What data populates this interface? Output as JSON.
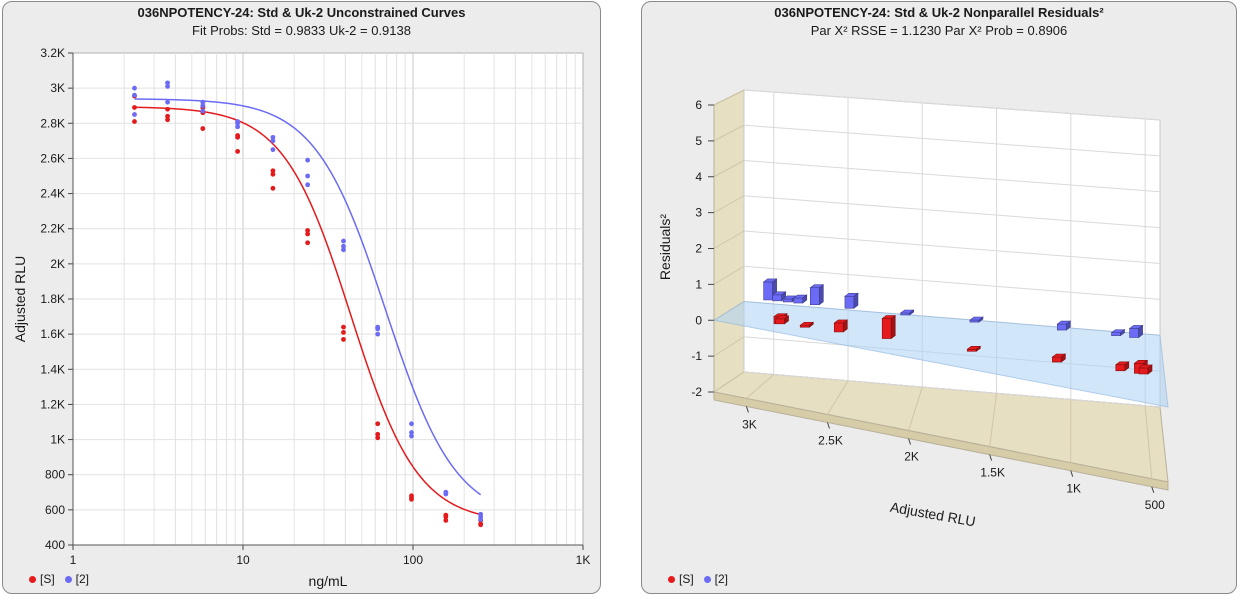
{
  "colors": {
    "std": "#e41a1c",
    "uk": "#6b6bf5",
    "panel_bg": "#ececec"
  },
  "legend": {
    "std_label": "[S]",
    "uk_label": "[2]"
  },
  "chart_data": [
    {
      "type": "scatter",
      "title": "036NPOTENCY-24: Std & Uk-2  Unconstrained Curves",
      "subtitle": "Fit Probs: Std = 0.9833  Uk-2 = 0.9138",
      "xlabel": "ng/mL",
      "ylabel": "Adjusted RLU",
      "xscale": "log",
      "xlim": [
        1,
        1000
      ],
      "ylim": [
        400,
        3200
      ],
      "xticks": [
        "1",
        "10",
        "100",
        "1K"
      ],
      "yticks": [
        "400",
        "600",
        "800",
        "1K",
        "1.2K",
        "1.4K",
        "1.6K",
        "1.8K",
        "2K",
        "2.2K",
        "2.4K",
        "2.6K",
        "2.8K",
        "3K",
        "3.2K"
      ],
      "grid": true,
      "legend": "bottom-left",
      "series": [
        {
          "name": "[S]",
          "curve": {
            "top": 2895,
            "bottom": 525,
            "ec50": 43,
            "slope": 2.2
          },
          "points": [
            [
              2.3,
              2890
            ],
            [
              2.3,
              2810
            ],
            [
              2.3,
              2955
            ],
            [
              3.6,
              2880
            ],
            [
              3.6,
              2820
            ],
            [
              3.6,
              2840
            ],
            [
              5.8,
              2860
            ],
            [
              5.8,
              2770
            ],
            [
              5.8,
              2890
            ],
            [
              9.3,
              2720
            ],
            [
              9.3,
              2730
            ],
            [
              9.3,
              2640
            ],
            [
              15,
              2510
            ],
            [
              15,
              2430
            ],
            [
              15,
              2530
            ],
            [
              24,
              2190
            ],
            [
              24,
              2170
            ],
            [
              24,
              2120
            ],
            [
              39,
              1640
            ],
            [
              39,
              1570
            ],
            [
              39,
              1610
            ],
            [
              62,
              1090
            ],
            [
              62,
              1010
            ],
            [
              62,
              1030
            ],
            [
              98,
              680
            ],
            [
              98,
              660
            ],
            [
              98,
              670
            ],
            [
              156,
              570
            ],
            [
              156,
              540
            ],
            [
              156,
              560
            ],
            [
              250,
              520
            ],
            [
              250,
              540
            ],
            [
              250,
              515
            ]
          ]
        },
        {
          "name": "[2]",
          "curve": {
            "top": 2940,
            "bottom": 535,
            "ec50": 69,
            "slope": 2.1
          },
          "points": [
            [
              2.3,
              3000
            ],
            [
              2.3,
              2850
            ],
            [
              2.3,
              2960
            ],
            [
              3.6,
              3010
            ],
            [
              3.6,
              3030
            ],
            [
              3.6,
              2920
            ],
            [
              5.8,
              2900
            ],
            [
              5.8,
              2920
            ],
            [
              5.8,
              2870
            ],
            [
              9.3,
              2800
            ],
            [
              9.3,
              2780
            ],
            [
              9.3,
              2810
            ],
            [
              15,
              2700
            ],
            [
              15,
              2650
            ],
            [
              15,
              2720
            ],
            [
              24,
              2590
            ],
            [
              24,
              2500
            ],
            [
              24,
              2450
            ],
            [
              39,
              2100
            ],
            [
              39,
              2080
            ],
            [
              39,
              2130
            ],
            [
              62,
              1640
            ],
            [
              62,
              1600
            ],
            [
              62,
              1630
            ],
            [
              98,
              1090
            ],
            [
              98,
              1020
            ],
            [
              98,
              1040
            ],
            [
              156,
              700
            ],
            [
              156,
              690
            ],
            [
              156,
              700
            ],
            [
              250,
              575
            ],
            [
              250,
              560
            ],
            [
              250,
              545
            ]
          ]
        }
      ]
    },
    {
      "type": "bar",
      "title": "036NPOTENCY-24: Std & Uk-2  Nonparallel Residuals²",
      "subtitle": "Par X² RSSE = 1.1230  Par X² Prob = 0.8906",
      "xlabel": "Adjusted RLU",
      "ylabel": "Residuals²",
      "xticks": [
        "3K",
        "2.5K",
        "2K",
        "1.5K",
        "1K",
        "500"
      ],
      "yticks": [
        "-2",
        "-1",
        "0",
        "1",
        "2",
        "3",
        "4",
        "5",
        "6"
      ],
      "ylim": [
        -2,
        6
      ],
      "grid": true,
      "legend": "bottom-left",
      "series": [
        {
          "name": "[S]",
          "bars": [
            [
              2890,
              0.35
            ],
            [
              2880,
              0.25
            ],
            [
              2720,
              0.1
            ],
            [
              2500,
              0.45
            ],
            [
              2190,
              1.0
            ],
            [
              1640,
              0.05
            ],
            [
              1090,
              0.25
            ],
            [
              680,
              0.3
            ],
            [
              560,
              0.5
            ],
            [
              530,
              0.3
            ]
          ]
        },
        {
          "name": "[2]",
          "bars": [
            [
              3010,
              0.9
            ],
            [
              2950,
              0.3
            ],
            [
              2880,
              0.15
            ],
            [
              2810,
              0.25
            ],
            [
              2700,
              0.85
            ],
            [
              2470,
              0.6
            ],
            [
              2100,
              0.05
            ],
            [
              1640,
              0.05
            ],
            [
              1060,
              0.3
            ],
            [
              700,
              0.15
            ],
            [
              580,
              0.45
            ]
          ]
        }
      ]
    }
  ]
}
